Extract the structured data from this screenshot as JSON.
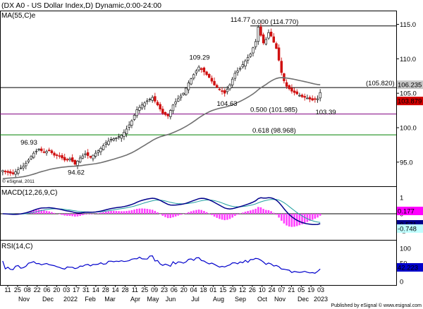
{
  "header": {
    "title": "(DX A0 - US Dollar Index,D) Dynamic,0:00-24:00",
    "ma_label": "MA(55,C)e",
    "copyright": "© eSignal, 2011",
    "footer": "Published by eSignal © www.esignal.com"
  },
  "chart_data": [
    {
      "type": "candlestick",
      "panel": "price",
      "title": "(DX A0 - US Dollar Index,D) Dynamic,0:00-24:00",
      "series": [
        {
          "name": "MA(55,C)e",
          "type": "line",
          "color": "#707070"
        }
      ],
      "y_ticks": [
        95.0,
        100.0,
        105.0,
        110.0,
        115.0
      ],
      "ylim": [
        91.5,
        117.0
      ],
      "x_ticks": [
        "11",
        "25",
        "08",
        "22",
        "06",
        "20",
        "03",
        "17",
        "31",
        "14",
        "28",
        "14",
        "28",
        "11",
        "25",
        "09",
        "23",
        "06",
        "20",
        "04",
        "18",
        "01",
        "15",
        "29",
        "12",
        "26",
        "10",
        "24",
        "07",
        "21",
        "05",
        "19",
        "03"
      ],
      "x_months": [
        "Nov",
        "Dec",
        "2022",
        "Feb",
        "Mar",
        "Apr",
        "May",
        "Jun",
        "Jul",
        "Aug",
        "Sep",
        "Oct",
        "Nov",
        "Dec",
        "2023"
      ],
      "close_path": [
        [
          0,
          93.8
        ],
        [
          2,
          93.5
        ],
        [
          4,
          93.3
        ],
        [
          6,
          93.9
        ],
        [
          8,
          94.4
        ],
        [
          10,
          95.3
        ],
        [
          12,
          96.3
        ],
        [
          14,
          96.9
        ],
        [
          16,
          96.4
        ],
        [
          18,
          96.7
        ],
        [
          20,
          96.0
        ],
        [
          22,
          95.9
        ],
        [
          24,
          95.3
        ],
        [
          26,
          95.5
        ],
        [
          28,
          94.7
        ],
        [
          30,
          95.6
        ],
        [
          32,
          96.2
        ],
        [
          34,
          95.7
        ],
        [
          36,
          96.3
        ],
        [
          38,
          97.0
        ],
        [
          40,
          97.8
        ],
        [
          42,
          98.3
        ],
        [
          44,
          98.5
        ],
        [
          46,
          98.9
        ],
        [
          48,
          99.8
        ],
        [
          50,
          101.0
        ],
        [
          52,
          102.6
        ],
        [
          54,
          103.3
        ],
        [
          56,
          103.9
        ],
        [
          58,
          104.4
        ],
        [
          60,
          103.3
        ],
        [
          62,
          102.1
        ],
        [
          64,
          101.7
        ],
        [
          66,
          103.3
        ],
        [
          68,
          104.2
        ],
        [
          70,
          105.0
        ],
        [
          72,
          106.5
        ],
        [
          74,
          107.7
        ],
        [
          76,
          108.8
        ],
        [
          78,
          108.1
        ],
        [
          80,
          107.3
        ],
        [
          82,
          106.2
        ],
        [
          84,
          105.5
        ],
        [
          86,
          105.0
        ],
        [
          88,
          106.2
        ],
        [
          90,
          107.9
        ],
        [
          92,
          108.6
        ],
        [
          94,
          109.7
        ],
        [
          96,
          110.7
        ],
        [
          98,
          112.5
        ],
        [
          99,
          114.6
        ],
        [
          100,
          113.4
        ],
        [
          101,
          112.3
        ],
        [
          102,
          112.8
        ],
        [
          103,
          113.8
        ],
        [
          104,
          113.3
        ],
        [
          105,
          112.4
        ],
        [
          106,
          111.5
        ],
        [
          107,
          109.8
        ],
        [
          108,
          108.0
        ],
        [
          109,
          106.8
        ],
        [
          110,
          106.0
        ],
        [
          112,
          105.3
        ],
        [
          114,
          104.9
        ],
        [
          116,
          104.5
        ],
        [
          118,
          104.3
        ],
        [
          120,
          104.0
        ],
        [
          122,
          104.2
        ],
        [
          123,
          105.1
        ]
      ],
      "swing_points": [
        {
          "label": "96.93",
          "value": 96.93
        },
        {
          "label": "94.62",
          "value": 94.62
        },
        {
          "label": "109.29",
          "value": 109.29
        },
        {
          "label": "104.63",
          "value": 104.63
        },
        {
          "label": "114.77",
          "value": 114.77
        },
        {
          "label": "103.39",
          "value": 103.39
        }
      ],
      "levels": [
        {
          "label": "0.000 (114.770)",
          "value": 114.77,
          "color": "#000000"
        },
        {
          "label": "(105.820)",
          "value": 105.82,
          "color": "#000000"
        },
        {
          "label": "0.500 (101.985)",
          "value": 101.985,
          "color": "#800080"
        },
        {
          "label": "0.618 (98.968)",
          "value": 98.968,
          "color": "#008000"
        }
      ],
      "last_values": [
        {
          "label": "106.235",
          "value": 106.235,
          "color": "#c8c8c8",
          "text_color": "#000000"
        },
        {
          "label": "103.879",
          "value": 103.879,
          "color": "#d00000",
          "text_color": "#ffffff"
        }
      ]
    },
    {
      "type": "line",
      "panel": "macd",
      "title": "MACD(12,26,9,C)",
      "series": [
        {
          "name": "MACD",
          "color": "#00008b"
        },
        {
          "name": "Signal",
          "color": "#20a0a0"
        },
        {
          "name": "Histogram",
          "color": "#ff40ff"
        }
      ],
      "y_ticks": [
        "1",
        "0",
        "-1"
      ],
      "last_values": [
        {
          "label": "0.177",
          "color": "#ff00ff",
          "text_color": "#ffffff"
        },
        {
          "label": "-0.571",
          "color": "#00008b",
          "text_color": "#ffffff"
        },
        {
          "label": "-0.748",
          "color": "#c0ffff",
          "text_color": "#000000"
        }
      ]
    },
    {
      "type": "line",
      "panel": "rsi",
      "title": "RSI(14,C)",
      "series": [
        {
          "name": "RSI",
          "color": "#0000cc"
        }
      ],
      "y_ticks": [
        "100",
        "50",
        "0"
      ],
      "last_values": [
        {
          "label": "42.223",
          "color": "#0000cc",
          "text_color": "#ffffff"
        }
      ]
    }
  ]
}
